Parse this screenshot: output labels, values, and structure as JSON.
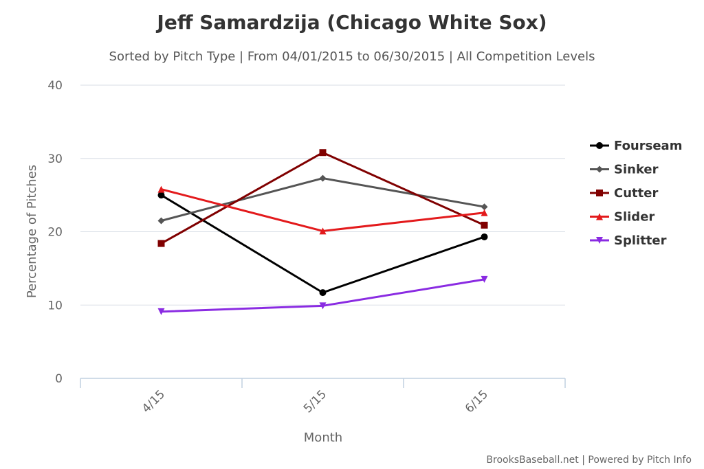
{
  "title": "Jeff Samardzija (Chicago White Sox)",
  "subtitle": "Sorted by Pitch Type | From 04/01/2015 to 06/30/2015 | All Competition Levels",
  "credits": "BrooksBaseball.net | Powered by Pitch Info",
  "chart_data": {
    "type": "line",
    "xlabel": "Month",
    "ylabel": "Percentage of Pitches",
    "categories": [
      "4/15",
      "5/15",
      "6/15"
    ],
    "ylim": [
      0,
      40
    ],
    "yticks": [
      0,
      10,
      20,
      30,
      40
    ],
    "grid": true,
    "legend": "right",
    "series": [
      {
        "name": "Fourseam",
        "values": [
          25.0,
          11.7,
          19.3
        ],
        "color": "#000000",
        "marker": "circle"
      },
      {
        "name": "Sinker",
        "values": [
          21.5,
          27.3,
          23.4
        ],
        "color": "#555555",
        "marker": "diamond"
      },
      {
        "name": "Cutter",
        "values": [
          18.4,
          30.8,
          20.9
        ],
        "color": "#800000",
        "marker": "square"
      },
      {
        "name": "Slider",
        "values": [
          25.8,
          20.1,
          22.6
        ],
        "color": "#e31a1c",
        "marker": "triangle"
      },
      {
        "name": "Splitter",
        "values": [
          9.1,
          9.9,
          13.5
        ],
        "color": "#8a2be2",
        "marker": "triangle-down"
      }
    ]
  }
}
